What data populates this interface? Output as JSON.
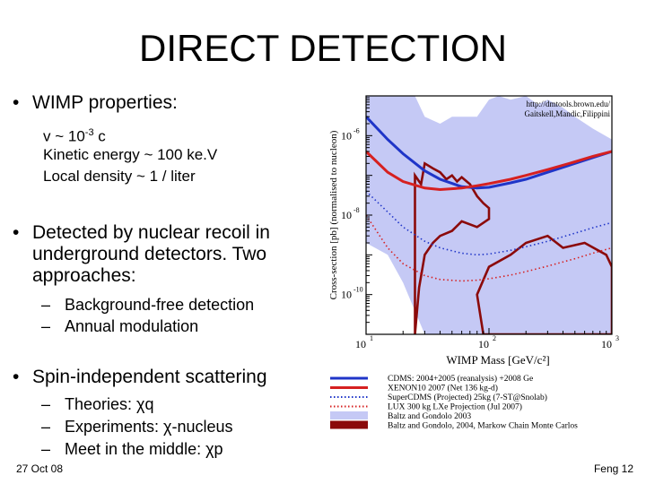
{
  "slide": {
    "title": "DIRECT DETECTION",
    "bullets": {
      "b1": "WIMP properties:",
      "b1_sub": [
        "v ~ 10",
        "-3",
        " c",
        "Kinetic energy ~ 100 ke.V",
        "Local density ~ 1 / liter"
      ],
      "b2_lines": [
        "Detected by nuclear recoil in",
        "underground detectors.  Two",
        "approaches:"
      ],
      "b2_sub": [
        "Background-free detection",
        "Annual modulation"
      ],
      "b3": "Spin-independent scattering",
      "b3_sub": [
        "Theories: χq",
        "Experiments: χ-nucleus",
        "Meet in the middle: χp"
      ]
    },
    "bullet_symbol": "•",
    "dash_symbol": "–",
    "footer_left": "27 Oct 08",
    "footer_right": "Feng  12"
  },
  "chart_data": {
    "type": "line",
    "title": "",
    "credit": [
      "http://dmtools.brown.edu/",
      "Gaitskell,Mandic,Filippini"
    ],
    "xlabel": "WIMP Mass [GeV/c²]",
    "ylabel": "Cross-section [pb] (normalised to nucleon)",
    "xscale": "log",
    "yscale": "log",
    "xlim": [
      10,
      1000
    ],
    "ylim": [
      1e-11,
      1e-05
    ],
    "x_ticks": [
      {
        "value": 10,
        "label": "10",
        "exp": "1"
      },
      {
        "value": 100,
        "label": "10",
        "exp": "2"
      },
      {
        "value": 1000,
        "label": "10",
        "exp": "3"
      }
    ],
    "y_ticks": [
      {
        "value": 1e-06,
        "label": "10",
        "exp": "-6"
      },
      {
        "value": 1e-08,
        "label": "10",
        "exp": "-8"
      },
      {
        "value": 1e-10,
        "label": "10",
        "exp": "-10"
      }
    ],
    "series": [
      {
        "name": "CDMS: 2004+2005 (reanalysis) +2008 Ge",
        "style": "solid",
        "color": "#1f35c8",
        "x": [
          10,
          15,
          20,
          30,
          40,
          60,
          80,
          100,
          150,
          200,
          300,
          500,
          700,
          1000
        ],
        "y": [
          3e-06,
          8e-07,
          3.5e-07,
          1.3e-07,
          8e-08,
          5.2e-08,
          4.8e-08,
          5e-08,
          6.5e-08,
          8e-08,
          1.2e-07,
          2e-07,
          2.8e-07,
          4e-07
        ]
      },
      {
        "name": "XENON10 2007 (Net 136 kg-d)",
        "style": "solid",
        "color": "#d62020",
        "x": [
          10,
          15,
          20,
          30,
          40,
          60,
          80,
          100,
          150,
          200,
          300,
          500,
          700,
          1000
        ],
        "y": [
          4e-07,
          1.2e-07,
          7e-08,
          4.8e-08,
          4.4e-08,
          4.8e-08,
          5.5e-08,
          6.2e-08,
          8e-08,
          1e-07,
          1.4e-07,
          2.2e-07,
          3e-07,
          4e-07
        ]
      },
      {
        "name": "SuperCDMS (Projected) 25kg (7-ST@Snolab)",
        "style": "dotted",
        "color": "#1f35c8",
        "x": [
          10,
          15,
          20,
          30,
          40,
          60,
          80,
          100,
          150,
          200,
          300,
          500,
          700,
          1000
        ],
        "y": [
          4e-08,
          1.2e-08,
          5e-09,
          2.2e-09,
          1.5e-09,
          1.1e-09,
          1e-09,
          1.05e-09,
          1.3e-09,
          1.6e-09,
          2.2e-09,
          3.5e-09,
          4.8e-09,
          6.5e-09
        ]
      },
      {
        "name": "LUX 300 kg LXe Projection (Jul 2007)",
        "style": "dotted",
        "color": "#d62020",
        "x": [
          10,
          15,
          20,
          30,
          40,
          60,
          80,
          100,
          150,
          200,
          300,
          500,
          700,
          1000
        ],
        "y": [
          1e-08,
          1.5e-09,
          6e-10,
          3e-10,
          2.4e-10,
          2.2e-10,
          2.3e-10,
          2.5e-10,
          3.1e-10,
          3.8e-10,
          5.2e-10,
          8e-10,
          1.1e-09,
          1.5e-09
        ]
      }
    ],
    "regions": [
      {
        "name": "Baltz and Gondolo 2003",
        "style": "filled",
        "color": "#c5c9f5",
        "x": [
          10,
          15,
          20,
          25,
          30,
          40,
          50,
          60,
          80,
          100,
          120,
          150,
          200,
          250,
          300,
          400,
          500,
          700,
          1000,
          1000,
          500,
          200,
          100,
          50,
          30,
          20,
          15,
          10
        ],
        "y": [
          1e-05,
          1e-05,
          1e-05,
          1e-05,
          3e-06,
          2e-06,
          3e-06,
          3e-06,
          3e-06,
          8e-06,
          1e-05,
          8e-06,
          1e-05,
          6e-06,
          8e-06,
          5e-06,
          3e-06,
          1.5e-06,
          8e-07,
          1e-11,
          1e-11,
          1e-11,
          1e-11,
          1e-11,
          1e-11,
          2e-10,
          1e-09,
          2e-09
        ]
      },
      {
        "name": "Baltz and Gondolo, 2004, Markow Chain Monte Carlos",
        "style": "outline",
        "color": "#8b0a0a",
        "x": [
          25,
          28,
          30,
          35,
          40,
          45,
          50,
          55,
          60,
          70,
          80,
          90,
          100,
          100,
          80,
          60,
          50,
          40,
          35,
          30,
          27,
          25
        ],
        "y": [
          1e-07,
          6e-08,
          2e-07,
          1.5e-07,
          1.2e-07,
          8e-08,
          1e-07,
          7e-08,
          9e-08,
          6e-08,
          3e-08,
          2e-08,
          1.5e-08,
          8e-09,
          5e-09,
          7e-09,
          4e-09,
          3e-09,
          2e-09,
          1e-09,
          1.5e-10,
          1e-11
        ]
      },
      {
        "name": "Baltz and Gondolo, 2004, Markow Chain Monte Carlos",
        "style": "outline",
        "color": "#8b0a0a",
        "x": [
          80,
          100,
          150,
          200,
          300,
          400,
          600,
          900,
          1000,
          1000,
          700,
          500,
          300,
          200,
          120,
          90,
          80
        ],
        "y": [
          1e-10,
          5e-10,
          1e-09,
          2e-09,
          3e-09,
          1.5e-09,
          2e-09,
          1e-09,
          5e-10,
          1e-11,
          1e-11,
          1e-11,
          1e-11,
          1e-11,
          1e-11,
          1e-11,
          1e-10
        ]
      }
    ],
    "legend": {
      "placement": "bottom-right",
      "entries": [
        "CDMS: 2004+2005 (reanalysis) +2008 Ge",
        "XENON10 2007 (Net 136 kg-d)",
        "SuperCDMS (Projected) 25kg (7-ST@Snolab)",
        "LUX 300 kg LXe Projection (Jul 2007)",
        "Baltz and Gondolo 2003",
        "Baltz and Gondolo, 2004, Markow Chain Monte Carlos"
      ]
    }
  }
}
